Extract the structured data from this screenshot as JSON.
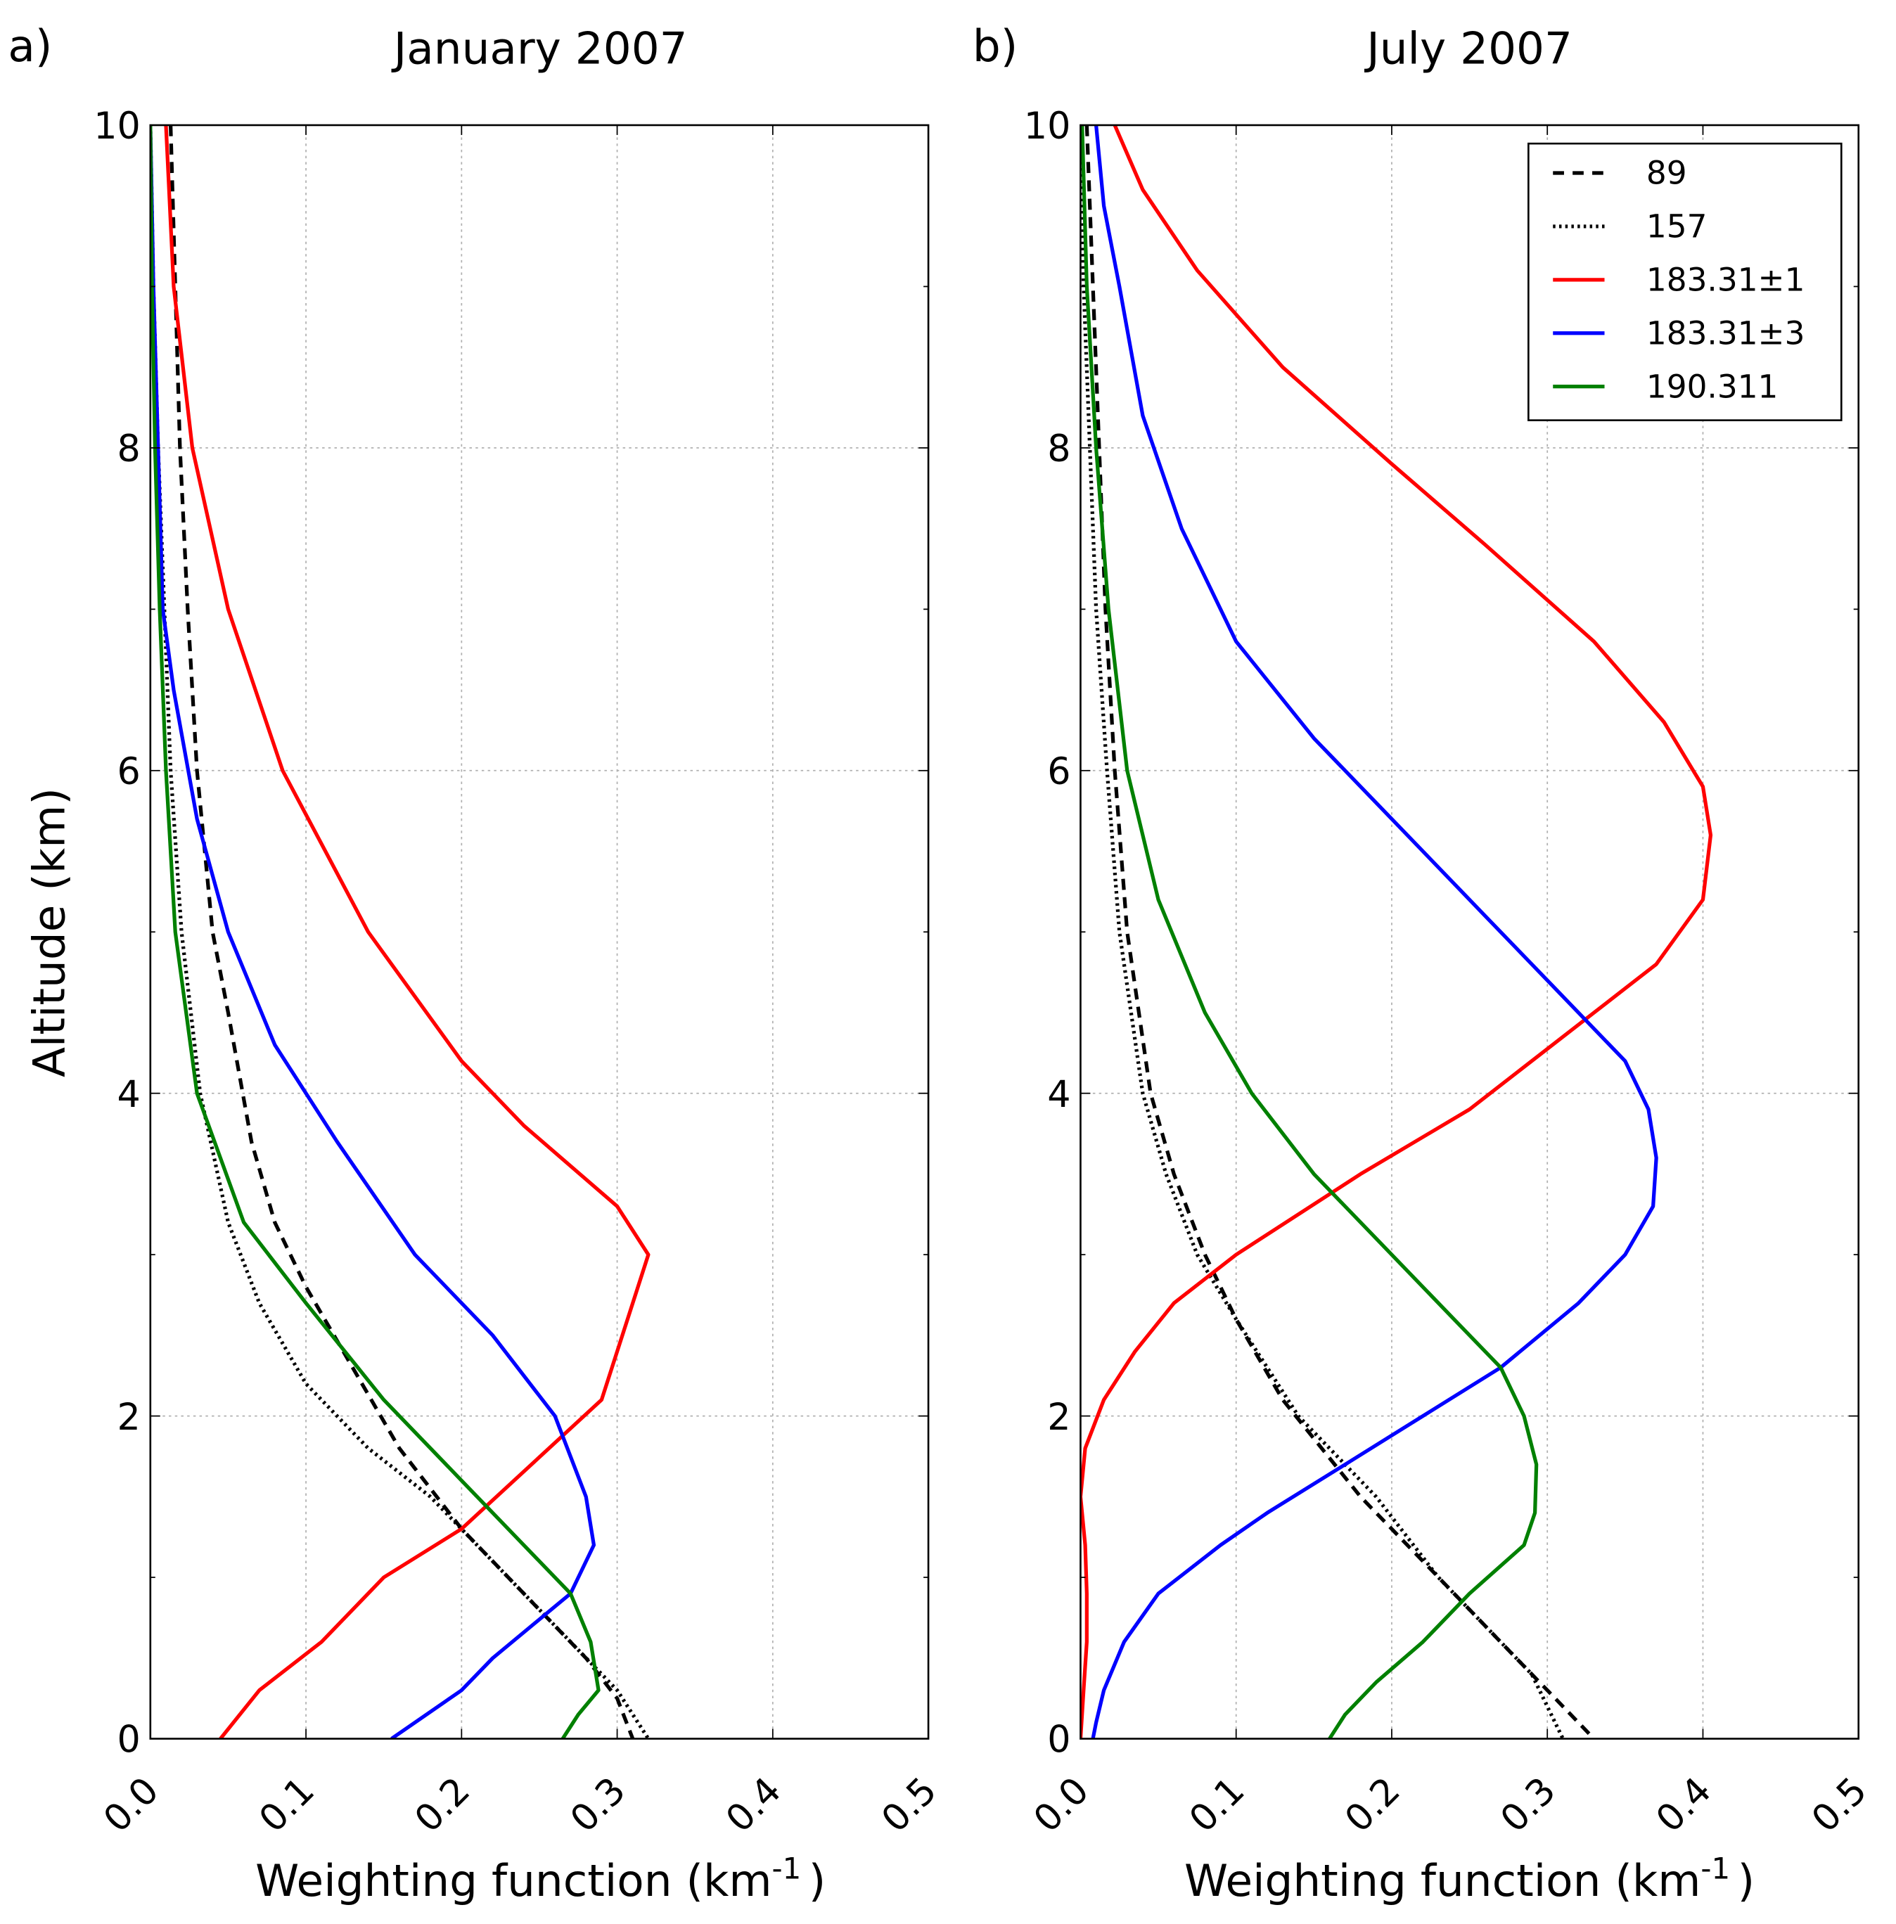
{
  "chart_data": [
    {
      "type": "line",
      "panel_label": "a)",
      "title": "January 2007",
      "xlabel_main": "Weighting function (km",
      "xlabel_sup": "-1",
      "xlabel_close": ")",
      "ylabel": "Altitude (km)",
      "xlim": [
        0,
        0.5
      ],
      "ylim": [
        0,
        10
      ],
      "xticks": [
        "0.0",
        "0.1",
        "0.2",
        "0.3",
        "0.4",
        "0.5"
      ],
      "yticks": [
        "0",
        "2",
        "4",
        "6",
        "8",
        "10"
      ],
      "grid": true,
      "series": [
        {
          "name": "89",
          "color": "#000000",
          "style": "dashed",
          "points": [
            [
              0.013,
              10
            ],
            [
              0.016,
              9
            ],
            [
              0.019,
              8
            ],
            [
              0.024,
              7
            ],
            [
              0.03,
              6
            ],
            [
              0.04,
              5
            ],
            [
              0.05,
              4.5
            ],
            [
              0.065,
              3.7
            ],
            [
              0.08,
              3.2
            ],
            [
              0.1,
              2.8
            ],
            [
              0.13,
              2.3
            ],
            [
              0.16,
              1.8
            ],
            [
              0.2,
              1.3
            ],
            [
              0.24,
              0.9
            ],
            [
              0.28,
              0.5
            ],
            [
              0.3,
              0.25
            ],
            [
              0.31,
              0
            ]
          ]
        },
        {
          "name": "157",
          "color": "#000000",
          "style": "dotted",
          "points": [
            [
              0,
              10
            ],
            [
              0.002,
              9
            ],
            [
              0.005,
              8
            ],
            [
              0.009,
              7
            ],
            [
              0.013,
              6
            ],
            [
              0.02,
              5
            ],
            [
              0.032,
              4
            ],
            [
              0.05,
              3.2
            ],
            [
              0.07,
              2.7
            ],
            [
              0.1,
              2.2
            ],
            [
              0.14,
              1.8
            ],
            [
              0.18,
              1.5
            ],
            [
              0.23,
              1.0
            ],
            [
              0.27,
              0.6
            ],
            [
              0.3,
              0.3
            ],
            [
              0.32,
              0
            ]
          ]
        },
        {
          "name": "183.31±1",
          "color": "#ff0000",
          "style": "solid",
          "points": [
            [
              0.01,
              10
            ],
            [
              0.015,
              9
            ],
            [
              0.027,
              8
            ],
            [
              0.05,
              7
            ],
            [
              0.085,
              6
            ],
            [
              0.14,
              5
            ],
            [
              0.2,
              4.2
            ],
            [
              0.24,
              3.8
            ],
            [
              0.3,
              3.3
            ],
            [
              0.32,
              3.0
            ],
            [
              0.31,
              2.7
            ],
            [
              0.29,
              2.1
            ],
            [
              0.2,
              1.3
            ],
            [
              0.15,
              1.0
            ],
            [
              0.11,
              0.6
            ],
            [
              0.07,
              0.3
            ],
            [
              0.045,
              0
            ]
          ]
        },
        {
          "name": "183.31±3",
          "color": "#0000ff",
          "style": "solid",
          "points": [
            [
              0,
              10
            ],
            [
              0.002,
              9
            ],
            [
              0.005,
              8
            ],
            [
              0.008,
              7
            ],
            [
              0.015,
              6.5
            ],
            [
              0.03,
              5.7
            ],
            [
              0.05,
              5
            ],
            [
              0.08,
              4.3
            ],
            [
              0.12,
              3.7
            ],
            [
              0.17,
              3.0
            ],
            [
              0.22,
              2.5
            ],
            [
              0.26,
              2.0
            ],
            [
              0.28,
              1.5
            ],
            [
              0.285,
              1.2
            ],
            [
              0.27,
              0.9
            ],
            [
              0.22,
              0.5
            ],
            [
              0.2,
              0.3
            ],
            [
              0.155,
              0
            ]
          ]
        },
        {
          "name": "190.311",
          "color": "#008000",
          "style": "solid",
          "points": [
            [
              0,
              10
            ],
            [
              0.001,
              9
            ],
            [
              0.003,
              8
            ],
            [
              0.006,
              7
            ],
            [
              0.01,
              6
            ],
            [
              0.016,
              5
            ],
            [
              0.03,
              4
            ],
            [
              0.06,
              3.2
            ],
            [
              0.1,
              2.7
            ],
            [
              0.15,
              2.1
            ],
            [
              0.2,
              1.6
            ],
            [
              0.24,
              1.2
            ],
            [
              0.27,
              0.9
            ],
            [
              0.283,
              0.6
            ],
            [
              0.288,
              0.3
            ],
            [
              0.275,
              0.15
            ],
            [
              0.265,
              0
            ]
          ]
        }
      ]
    },
    {
      "type": "line",
      "panel_label": "b)",
      "title": "July 2007",
      "xlabel_main": "Weighting function (km",
      "xlabel_sup": "-1",
      "xlabel_close": ")",
      "ylabel": "",
      "xlim": [
        0,
        0.5
      ],
      "ylim": [
        0,
        10
      ],
      "xticks": [
        "0.0",
        "0.1",
        "0.2",
        "0.3",
        "0.4",
        "0.5"
      ],
      "yticks": [
        "0",
        "2",
        "4",
        "6",
        "8",
        "10"
      ],
      "grid": true,
      "legend_position": "top-right",
      "series": [
        {
          "name": "89",
          "color": "#000000",
          "style": "dashed",
          "points": [
            [
              0.004,
              10
            ],
            [
              0.008,
              9
            ],
            [
              0.012,
              8
            ],
            [
              0.016,
              7
            ],
            [
              0.022,
              6
            ],
            [
              0.03,
              5
            ],
            [
              0.045,
              4
            ],
            [
              0.06,
              3.5
            ],
            [
              0.08,
              3.0
            ],
            [
              0.1,
              2.6
            ],
            [
              0.13,
              2.1
            ],
            [
              0.18,
              1.5
            ],
            [
              0.22,
              1.1
            ],
            [
              0.25,
              0.8
            ],
            [
              0.28,
              0.5
            ],
            [
              0.3,
              0.3
            ],
            [
              0.33,
              0
            ]
          ]
        },
        {
          "name": "157",
          "color": "#000000",
          "style": "dotted",
          "points": [
            [
              0,
              10
            ],
            [
              0.002,
              9
            ],
            [
              0.006,
              8
            ],
            [
              0.01,
              7
            ],
            [
              0.017,
              6
            ],
            [
              0.025,
              5
            ],
            [
              0.04,
              4
            ],
            [
              0.055,
              3.5
            ],
            [
              0.075,
              3.0
            ],
            [
              0.1,
              2.6
            ],
            [
              0.14,
              2.0
            ],
            [
              0.19,
              1.5
            ],
            [
              0.23,
              1.0
            ],
            [
              0.26,
              0.7
            ],
            [
              0.29,
              0.4
            ],
            [
              0.3,
              0.2
            ],
            [
              0.31,
              0
            ]
          ]
        },
        {
          "name": "183.31±1",
          "color": "#ff0000",
          "style": "solid",
          "points": [
            [
              0.022,
              10
            ],
            [
              0.04,
              9.6
            ],
            [
              0.075,
              9.1
            ],
            [
              0.13,
              8.5
            ],
            [
              0.2,
              7.9
            ],
            [
              0.26,
              7.4
            ],
            [
              0.33,
              6.8
            ],
            [
              0.375,
              6.3
            ],
            [
              0.4,
              5.9
            ],
            [
              0.405,
              5.6
            ],
            [
              0.4,
              5.2
            ],
            [
              0.37,
              4.8
            ],
            [
              0.33,
              4.5
            ],
            [
              0.25,
              3.9
            ],
            [
              0.18,
              3.5
            ],
            [
              0.1,
              3.0
            ],
            [
              0.06,
              2.7
            ],
            [
              0.035,
              2.4
            ],
            [
              0.015,
              2.1
            ],
            [
              0.003,
              1.8
            ],
            [
              0,
              1.5
            ],
            [
              0.003,
              1.2
            ],
            [
              0.004,
              0.9
            ],
            [
              0.004,
              0.6
            ],
            [
              0.002,
              0.3
            ],
            [
              0,
              0
            ]
          ]
        },
        {
          "name": "183.31±3",
          "color": "#0000ff",
          "style": "solid",
          "points": [
            [
              0.01,
              10
            ],
            [
              0.015,
              9.5
            ],
            [
              0.025,
              9
            ],
            [
              0.04,
              8.2
            ],
            [
              0.065,
              7.5
            ],
            [
              0.1,
              6.8
            ],
            [
              0.15,
              6.2
            ],
            [
              0.2,
              5.7
            ],
            [
              0.26,
              5.1
            ],
            [
              0.31,
              4.6
            ],
            [
              0.35,
              4.2
            ],
            [
              0.365,
              3.9
            ],
            [
              0.37,
              3.6
            ],
            [
              0.368,
              3.3
            ],
            [
              0.35,
              3.0
            ],
            [
              0.32,
              2.7
            ],
            [
              0.27,
              2.3
            ],
            [
              0.22,
              2.0
            ],
            [
              0.17,
              1.7
            ],
            [
              0.12,
              1.4
            ],
            [
              0.09,
              1.2
            ],
            [
              0.05,
              0.9
            ],
            [
              0.028,
              0.6
            ],
            [
              0.015,
              0.3
            ],
            [
              0.01,
              0.1
            ],
            [
              0.008,
              0
            ]
          ]
        },
        {
          "name": "190.311",
          "color": "#008000",
          "style": "solid",
          "points": [
            [
              0.001,
              10
            ],
            [
              0.004,
              9
            ],
            [
              0.01,
              8
            ],
            [
              0.018,
              7
            ],
            [
              0.03,
              6
            ],
            [
              0.05,
              5.2
            ],
            [
              0.08,
              4.5
            ],
            [
              0.11,
              4.0
            ],
            [
              0.15,
              3.5
            ],
            [
              0.2,
              3.0
            ],
            [
              0.24,
              2.6
            ],
            [
              0.27,
              2.3
            ],
            [
              0.285,
              2.0
            ],
            [
              0.293,
              1.7
            ],
            [
              0.292,
              1.4
            ],
            [
              0.285,
              1.2
            ],
            [
              0.25,
              0.9
            ],
            [
              0.22,
              0.6
            ],
            [
              0.19,
              0.35
            ],
            [
              0.17,
              0.15
            ],
            [
              0.16,
              0
            ]
          ]
        }
      ]
    }
  ]
}
